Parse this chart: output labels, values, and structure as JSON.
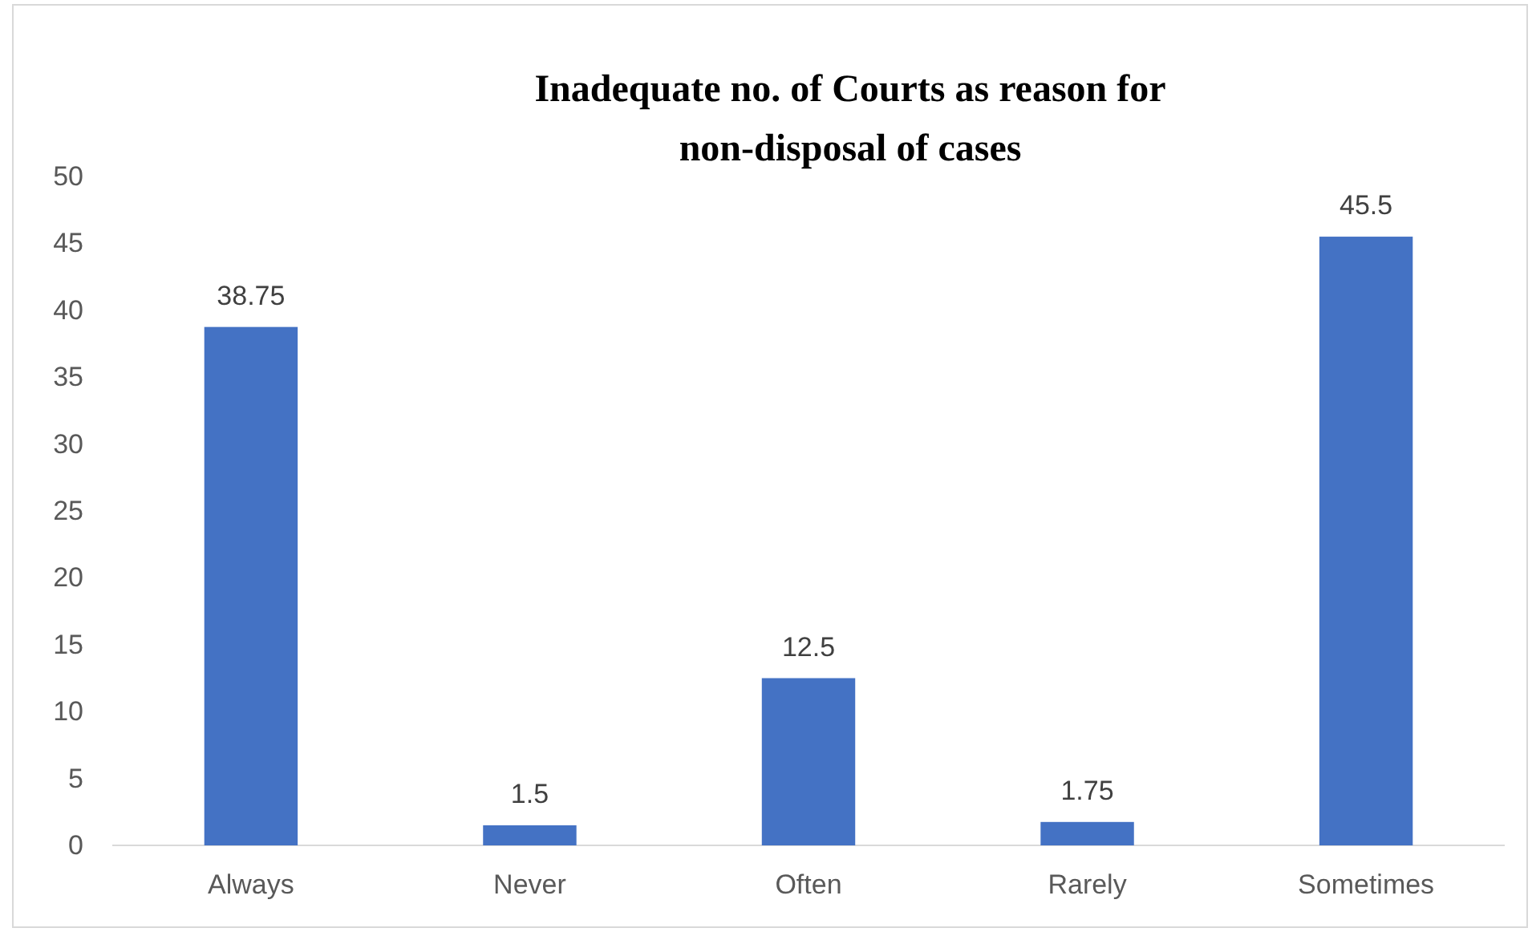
{
  "chart_data": {
    "type": "bar",
    "title": "Inadequate no. of Courts as reason for non-disposal of cases",
    "categories": [
      "Always",
      "Never",
      "Often",
      "Rarely",
      "Sometimes"
    ],
    "values": [
      38.75,
      1.5,
      12.5,
      1.75,
      45.5
    ],
    "color": "#4472c4",
    "ylim": [
      0,
      50
    ],
    "yticks": [
      0,
      5,
      10,
      15,
      20,
      25,
      30,
      35,
      40,
      45,
      50
    ],
    "grid": false,
    "data_labels": true
  }
}
